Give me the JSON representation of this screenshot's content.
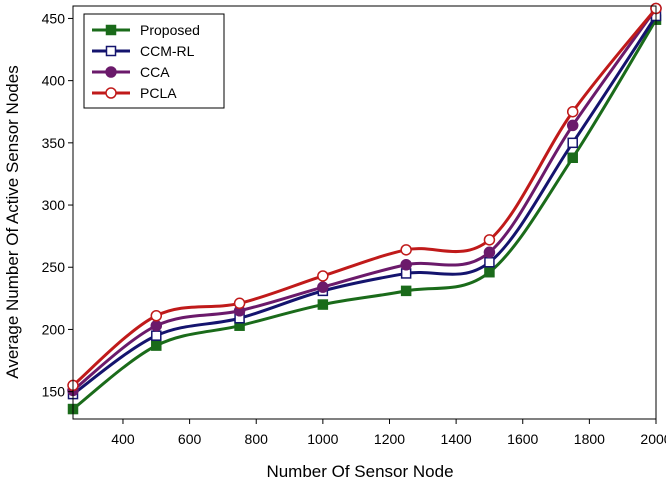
{
  "chart_data": {
    "type": "line",
    "title": "",
    "xlabel": "Number Of Sensor Node",
    "ylabel": "Average Number Of Active Sensor Nodes",
    "x": [
      250,
      500,
      750,
      1000,
      1250,
      1500,
      1750,
      2000
    ],
    "xlim": [
      250,
      2000
    ],
    "ylim": [
      128,
      460
    ],
    "xticks": [
      400,
      600,
      800,
      1000,
      1200,
      1400,
      1600,
      1800,
      2000
    ],
    "yticks": [
      150,
      200,
      250,
      300,
      350,
      400,
      450
    ],
    "xtick_labels": [
      "400",
      "600",
      "800",
      "1000",
      "1200",
      "1400",
      "1600",
      "1800",
      "2000"
    ],
    "ytick_labels": [
      "150",
      "200",
      "250",
      "300",
      "350",
      "400",
      "450"
    ],
    "grid": false,
    "legend_position": "top-left",
    "smooth": true,
    "series": [
      {
        "name": "Proposed",
        "color": "#1a6b1a",
        "marker": "filled-square",
        "values": [
          136,
          187,
          203,
          220,
          231,
          246,
          338,
          449
        ]
      },
      {
        "name": "CCM-RL",
        "color": "#14146e",
        "marker": "open-square",
        "values": [
          148,
          195,
          209,
          231,
          245,
          254,
          350,
          452
        ]
      },
      {
        "name": "CCA",
        "color": "#6b1a6b",
        "marker": "filled-circle",
        "values": [
          151,
          203,
          215,
          234,
          252,
          262,
          364,
          458
        ]
      },
      {
        "name": "PCLA",
        "color": "#c01a1a",
        "marker": "open-circle",
        "values": [
          155,
          211,
          221,
          243,
          264,
          272,
          375,
          458
        ]
      }
    ]
  }
}
